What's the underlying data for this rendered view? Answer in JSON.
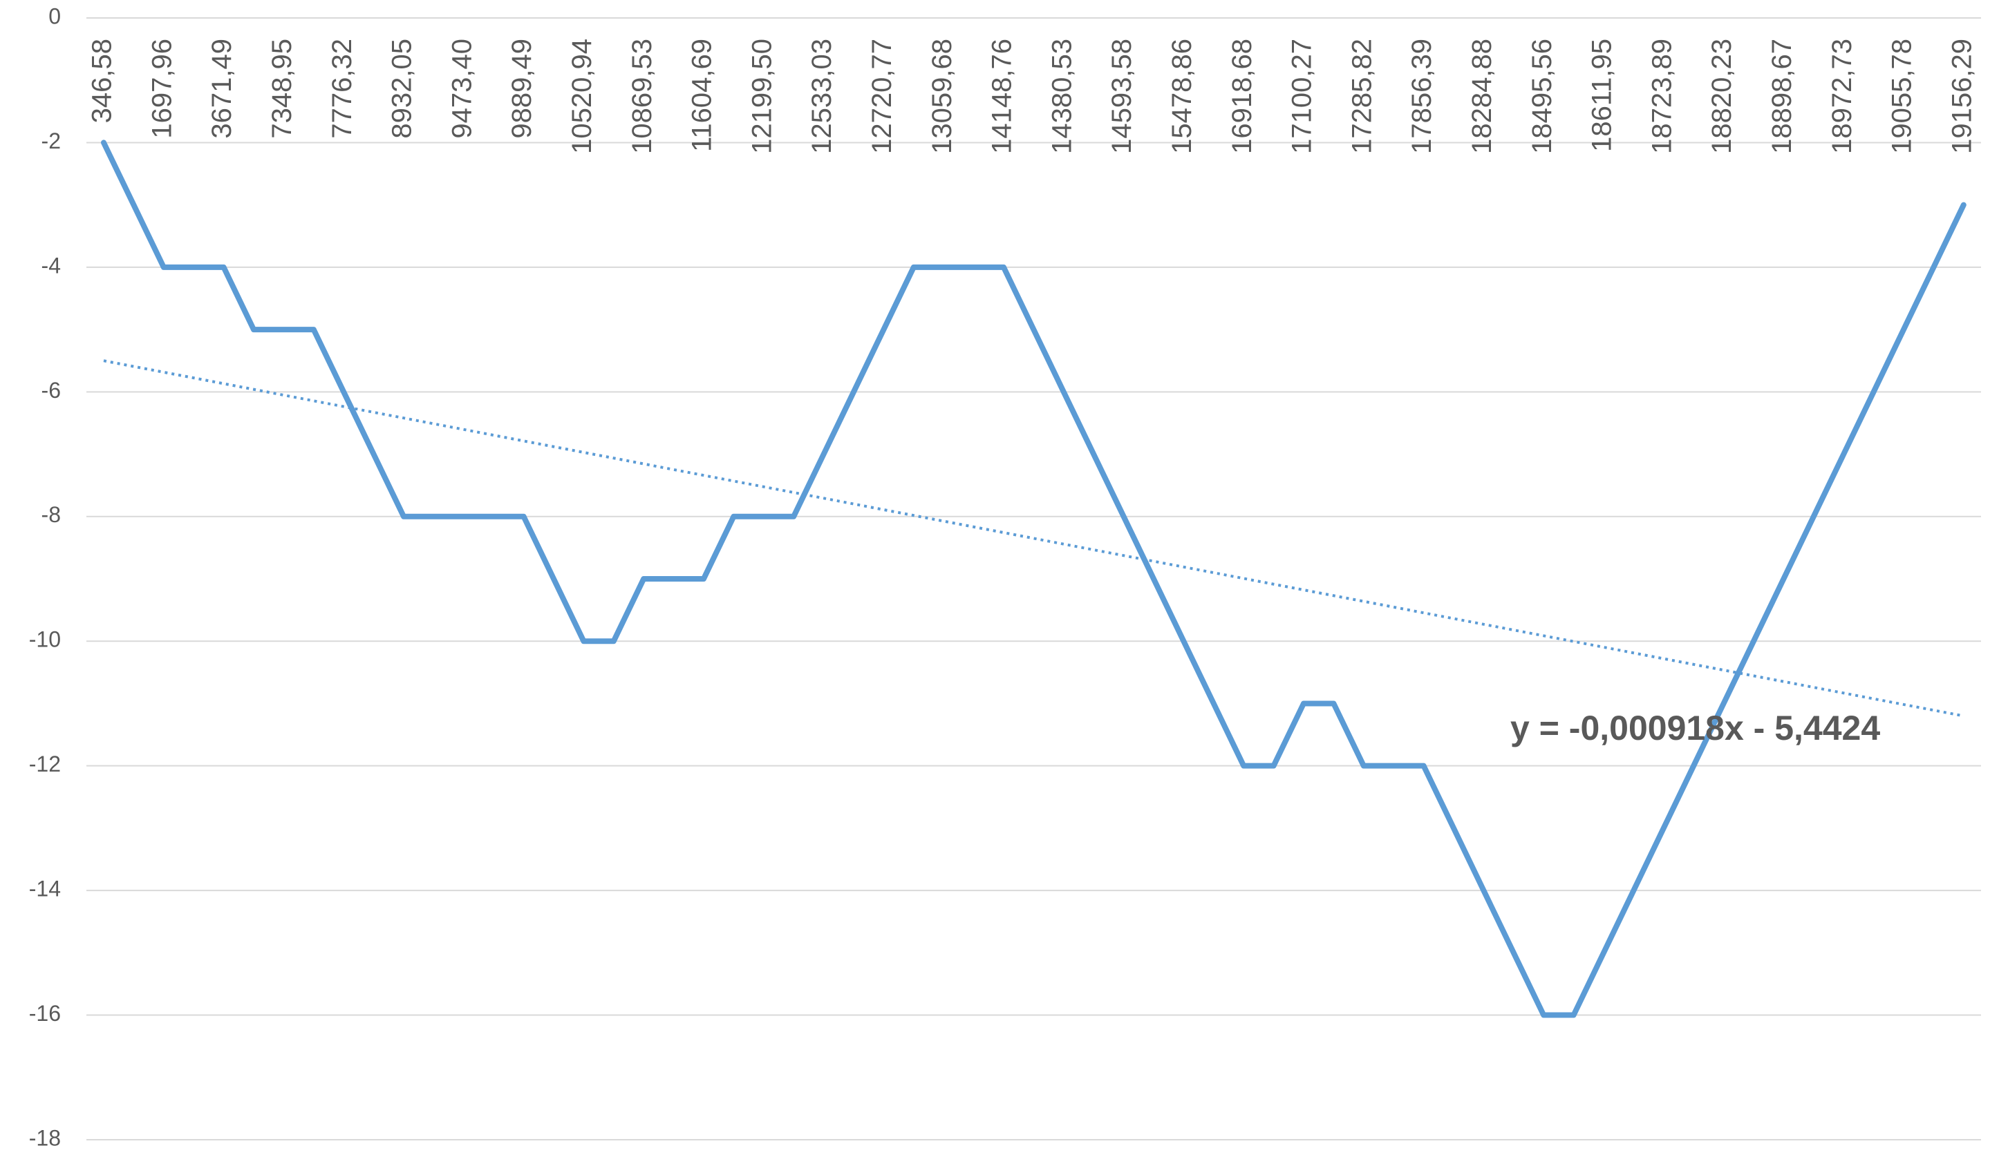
{
  "chart_data": {
    "type": "line",
    "categories": [
      "346,58",
      null,
      "1697,96",
      null,
      "3671,49",
      null,
      "7348,95",
      null,
      "7776,32",
      null,
      "8932,05",
      null,
      "9473,40",
      null,
      "9889,49",
      null,
      "10520,94",
      null,
      "10869,53",
      null,
      "11604,69",
      null,
      "12199,50",
      null,
      "12533,03",
      null,
      "12720,77",
      null,
      "13059,68",
      null,
      "14148,76",
      null,
      "14380,53",
      null,
      "14593,58",
      null,
      "15478,86",
      null,
      "16918,68",
      null,
      "17100,27",
      null,
      "17285,82",
      null,
      "17856,39",
      null,
      "18284,88",
      null,
      "18495,56",
      null,
      "18611,95",
      null,
      "18723,89",
      null,
      "18820,23",
      null,
      "18898,67",
      null,
      "18972,73",
      null,
      "19055,78",
      null,
      "19156,29"
    ],
    "values": [
      -2,
      -3,
      -4,
      -4,
      -4,
      -5,
      -5,
      -5,
      -6,
      -7,
      -8,
      -8,
      -8,
      -8,
      -8,
      -9,
      -10,
      -10,
      -9,
      -9,
      -9,
      -8,
      -8,
      -8,
      -7,
      -6,
      -5,
      -4,
      -4,
      -4,
      -4,
      -5,
      -6,
      -7,
      -8,
      -9,
      -10,
      -11,
      -12,
      -12,
      -11,
      -11,
      -12,
      -12,
      -12,
      -13,
      -14,
      -15,
      -16,
      -16,
      -15,
      -14,
      -13,
      -12,
      -11,
      -10,
      -9,
      -8,
      -7,
      -6,
      -5,
      -4,
      -3
    ],
    "color": "#5b9bd5",
    "ylim": [
      -18,
      0
    ],
    "yticks": [
      0,
      -2,
      -4,
      -6,
      -8,
      -10,
      -12,
      -14,
      -16,
      -18
    ],
    "grid": true,
    "trendline": {
      "equation": "y = -0,000918x - 5,4424",
      "y_start": -5.5,
      "y_end": -11.2
    }
  }
}
